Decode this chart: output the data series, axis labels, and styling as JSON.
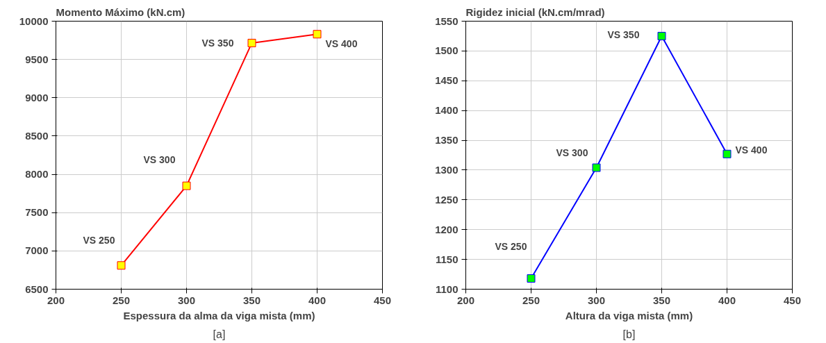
{
  "chart_data": [
    {
      "type": "line",
      "title": "Momento Máximo (kN.cm)",
      "xlabel": "Espessura da alma da viga mista (mm)",
      "x": [
        250,
        300,
        350,
        400
      ],
      "series": [
        {
          "color": "#ff0000",
          "colors": [
            "#ffff00",
            "#ffff00",
            "#ffff00",
            "#ffff00"
          ],
          "values": [
            6810,
            7850,
            9715,
            9830
          ]
        }
      ],
      "xlim": [
        200,
        450
      ],
      "xticks": [
        200,
        250,
        300,
        350,
        400,
        450
      ],
      "ylim": [
        6500,
        10000
      ],
      "yticks": [
        6500,
        7000,
        7500,
        8000,
        8500,
        9000,
        9500,
        10000
      ],
      "grid": true,
      "marker": "square",
      "line_style": "solid",
      "annotations": [
        {
          "text": "VS 250",
          "x": 250,
          "y": 6810
        },
        {
          "text": "VS 300",
          "x": 300,
          "y": 7850
        },
        {
          "text": "VS 350",
          "x": 350,
          "y": 9715
        },
        {
          "text": "VS 400",
          "x": 400,
          "y": 9830
        },
        "[a]"
      ]
    },
    {
      "type": "line",
      "title": "Rigidez inicial (kN.cm/mrad)",
      "xlabel": "Altura da viga mista (mm)",
      "x": [
        250,
        300,
        350,
        400
      ],
      "series": [
        {
          "color": "#0000ff",
          "colors": [
            "#00ff00",
            "#00ff00",
            "#00ff00",
            "#00ff00"
          ],
          "values": [
            1118,
            1304,
            1525,
            1327
          ]
        }
      ],
      "xlim": [
        200,
        450
      ],
      "xticks": [
        200,
        250,
        300,
        350,
        400,
        450
      ],
      "ylim": [
        1100,
        1550
      ],
      "yticks": [
        1100,
        1150,
        1200,
        1250,
        1300,
        1350,
        1400,
        1450,
        1500,
        1550
      ],
      "grid": true,
      "marker": "square",
      "line_style": "solid",
      "annotations": [
        {
          "text": "VS 250",
          "x": 250,
          "y": 1118
        },
        {
          "text": "VS 300",
          "x": 300,
          "y": 1304
        },
        {
          "text": "VS 350",
          "x": 350,
          "y": 1525
        },
        {
          "text": "VS 400",
          "x": 400,
          "y": 1327
        },
        "[b]"
      ]
    }
  ]
}
